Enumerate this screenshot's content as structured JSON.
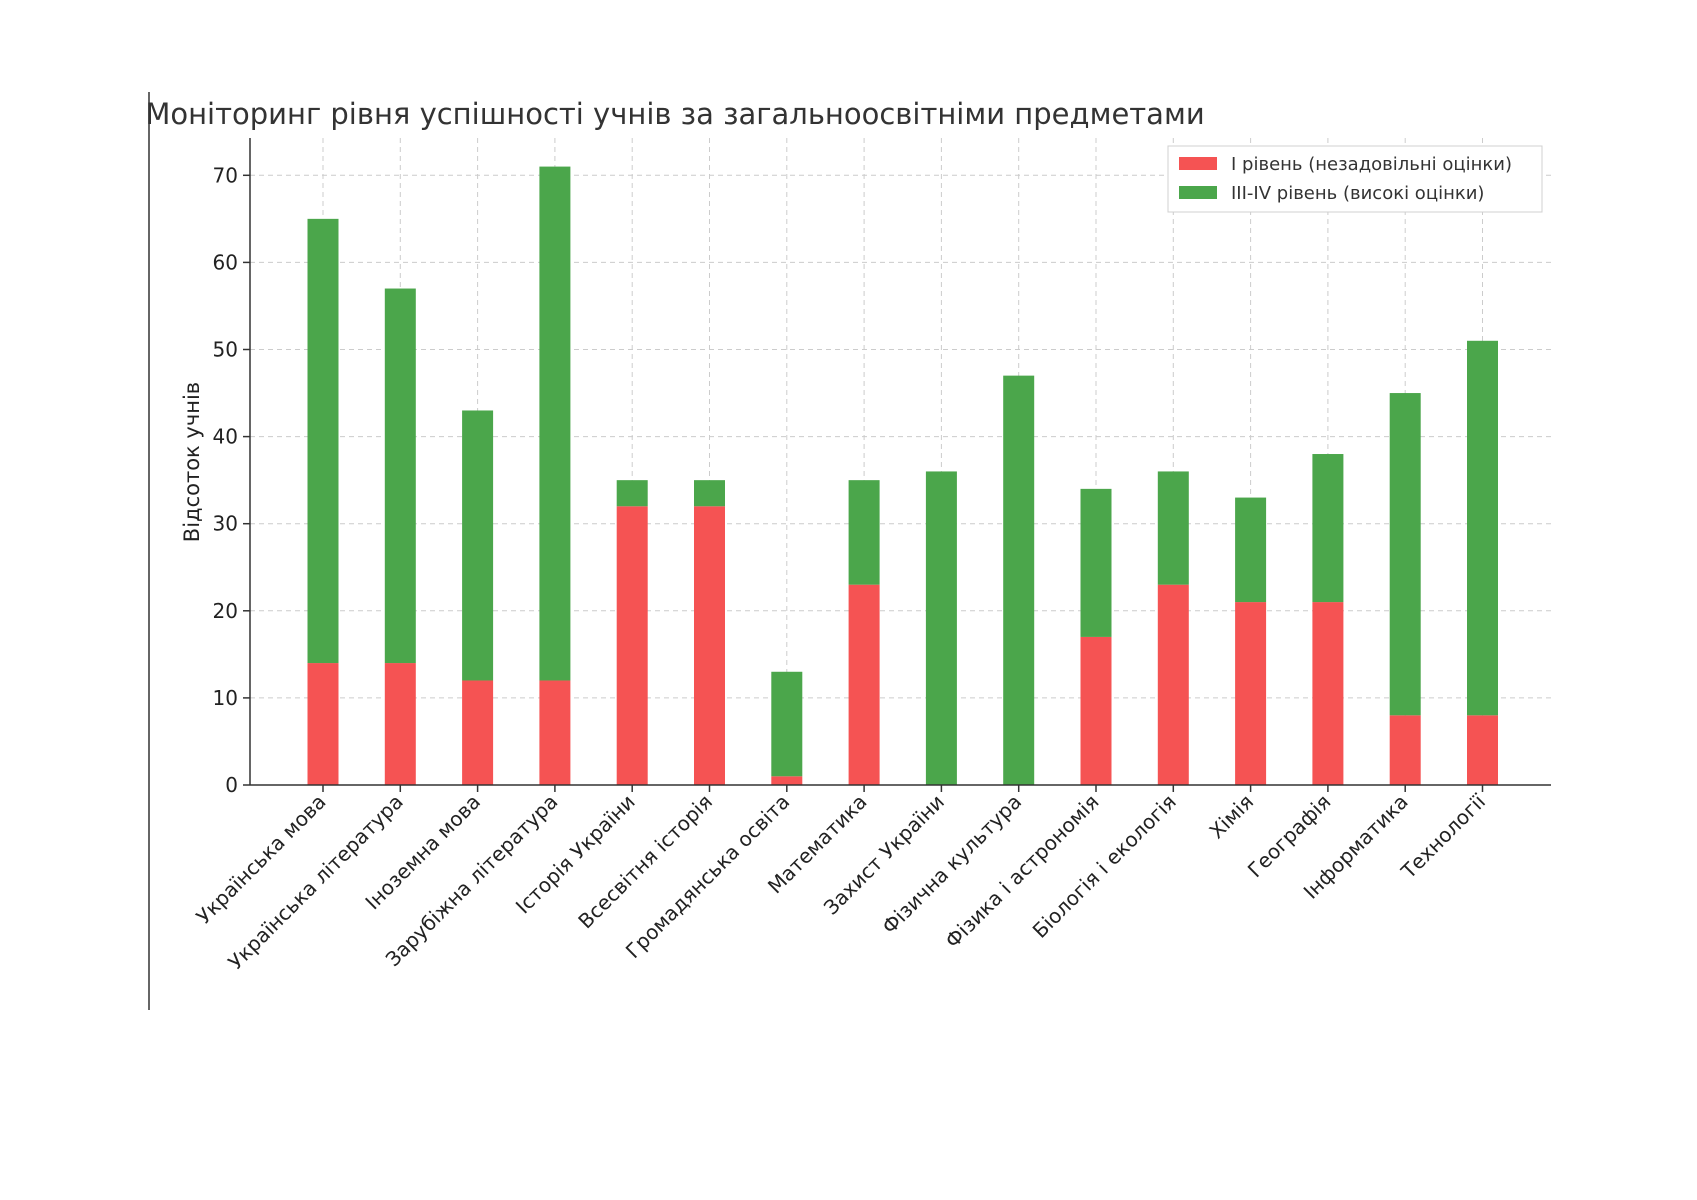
{
  "chart_data": {
    "type": "bar",
    "stacked": true,
    "title": "Моніторинг рівня успішності учнів за загальноосвітніми предметами",
    "xlabel": "",
    "ylabel": "Відсоток учнів",
    "ylim": [
      0,
      75
    ],
    "yticks": [
      0,
      10,
      20,
      30,
      40,
      50,
      60,
      70
    ],
    "grid": true,
    "legend_position": "top-right",
    "categories": [
      "Українська мова",
      "Українська література",
      "Іноземна мова",
      "Зарубіжна література",
      "Історія України",
      "Всесвітня історія",
      "Громадянська освіта",
      "Математика",
      "Захист України",
      "Фізична культура",
      "Фізика і астрономія",
      "Біологія і екологія",
      "Хімія",
      "Географія",
      "Інформатика",
      "Технології"
    ],
    "series": [
      {
        "name": "I рівень (незадовільні оцінки)",
        "color": "#f55353",
        "values": [
          14,
          14,
          12,
          12,
          32,
          32,
          1,
          23,
          0,
          0,
          17,
          23,
          21,
          21,
          8,
          8
        ]
      },
      {
        "name": "III-IV рівень (високі оцінки)",
        "color": "#4ba64b",
        "values": [
          51,
          43,
          31,
          59,
          3,
          3,
          12,
          12,
          36,
          47,
          17,
          13,
          12,
          17,
          37,
          43
        ]
      }
    ]
  }
}
